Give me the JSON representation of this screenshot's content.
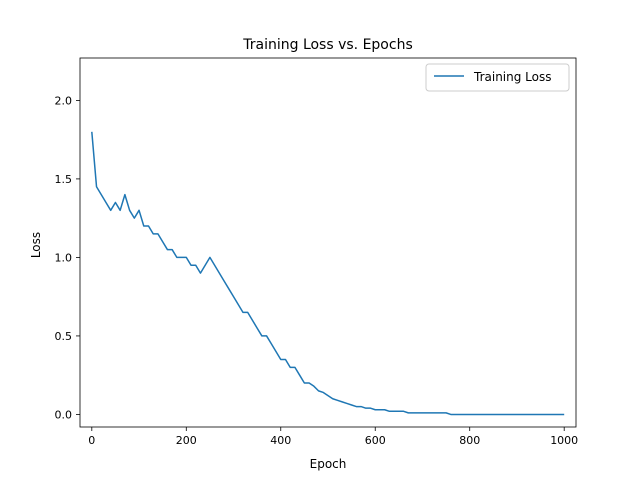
{
  "chart_data": {
    "type": "line",
    "title": "Training Loss vs. Epochs",
    "xlabel": "Epoch",
    "ylabel": "Loss",
    "xlim": [
      -25,
      1025
    ],
    "ylim": [
      -0.08,
      2.27
    ],
    "xticks": [
      0,
      200,
      400,
      600,
      800,
      1000
    ],
    "yticks": [
      0.0,
      0.5,
      1.0,
      1.5,
      2.0
    ],
    "xtick_labels": [
      "0",
      "200",
      "400",
      "600",
      "800",
      "1000"
    ],
    "ytick_labels": [
      "0.0",
      "0.5",
      "1.0",
      "1.5",
      "2.0"
    ],
    "grid": false,
    "legend_position": "top-right",
    "series": [
      {
        "name": "Training Loss",
        "color": "#1f77b4",
        "x": [
          0,
          10,
          20,
          30,
          40,
          50,
          60,
          70,
          80,
          90,
          100,
          110,
          120,
          130,
          140,
          150,
          160,
          170,
          180,
          190,
          200,
          210,
          220,
          230,
          240,
          250,
          260,
          270,
          280,
          290,
          300,
          310,
          320,
          330,
          340,
          350,
          360,
          370,
          380,
          390,
          400,
          410,
          420,
          430,
          440,
          450,
          460,
          470,
          480,
          490,
          500,
          510,
          520,
          530,
          540,
          550,
          560,
          570,
          580,
          590,
          600,
          610,
          620,
          630,
          640,
          650,
          660,
          670,
          680,
          690,
          700,
          710,
          720,
          730,
          740,
          750,
          760,
          770,
          780,
          790,
          800,
          810,
          820,
          830,
          840,
          850,
          860,
          870,
          880,
          890,
          900,
          910,
          920,
          930,
          940,
          950,
          960,
          970,
          980,
          990,
          1000
        ],
        "y": [
          1.8,
          1.45,
          1.4,
          1.35,
          1.3,
          1.35,
          1.3,
          1.4,
          1.3,
          1.25,
          1.3,
          1.2,
          1.2,
          1.15,
          1.15,
          1.1,
          1.05,
          1.05,
          1.0,
          1.0,
          1.0,
          0.95,
          0.95,
          0.9,
          0.95,
          1.0,
          0.95,
          0.9,
          0.85,
          0.8,
          0.75,
          0.7,
          0.65,
          0.65,
          0.6,
          0.55,
          0.5,
          0.5,
          0.45,
          0.4,
          0.35,
          0.35,
          0.3,
          0.3,
          0.25,
          0.2,
          0.2,
          0.18,
          0.15,
          0.14,
          0.12,
          0.1,
          0.09,
          0.08,
          0.07,
          0.06,
          0.05,
          0.05,
          0.04,
          0.04,
          0.03,
          0.03,
          0.03,
          0.02,
          0.02,
          0.02,
          0.02,
          0.01,
          0.01,
          0.01,
          0.01,
          0.01,
          0.01,
          0.01,
          0.01,
          0.01,
          0.0,
          0.0,
          0.0,
          0.0,
          0.0,
          0.0,
          0.0,
          0.0,
          0.0,
          0.0,
          0.0,
          0.0,
          0.0,
          0.0,
          0.0,
          0.0,
          0.0,
          0.0,
          0.0,
          0.0,
          0.0,
          0.0,
          0.0,
          0.0,
          0.0
        ]
      }
    ]
  }
}
